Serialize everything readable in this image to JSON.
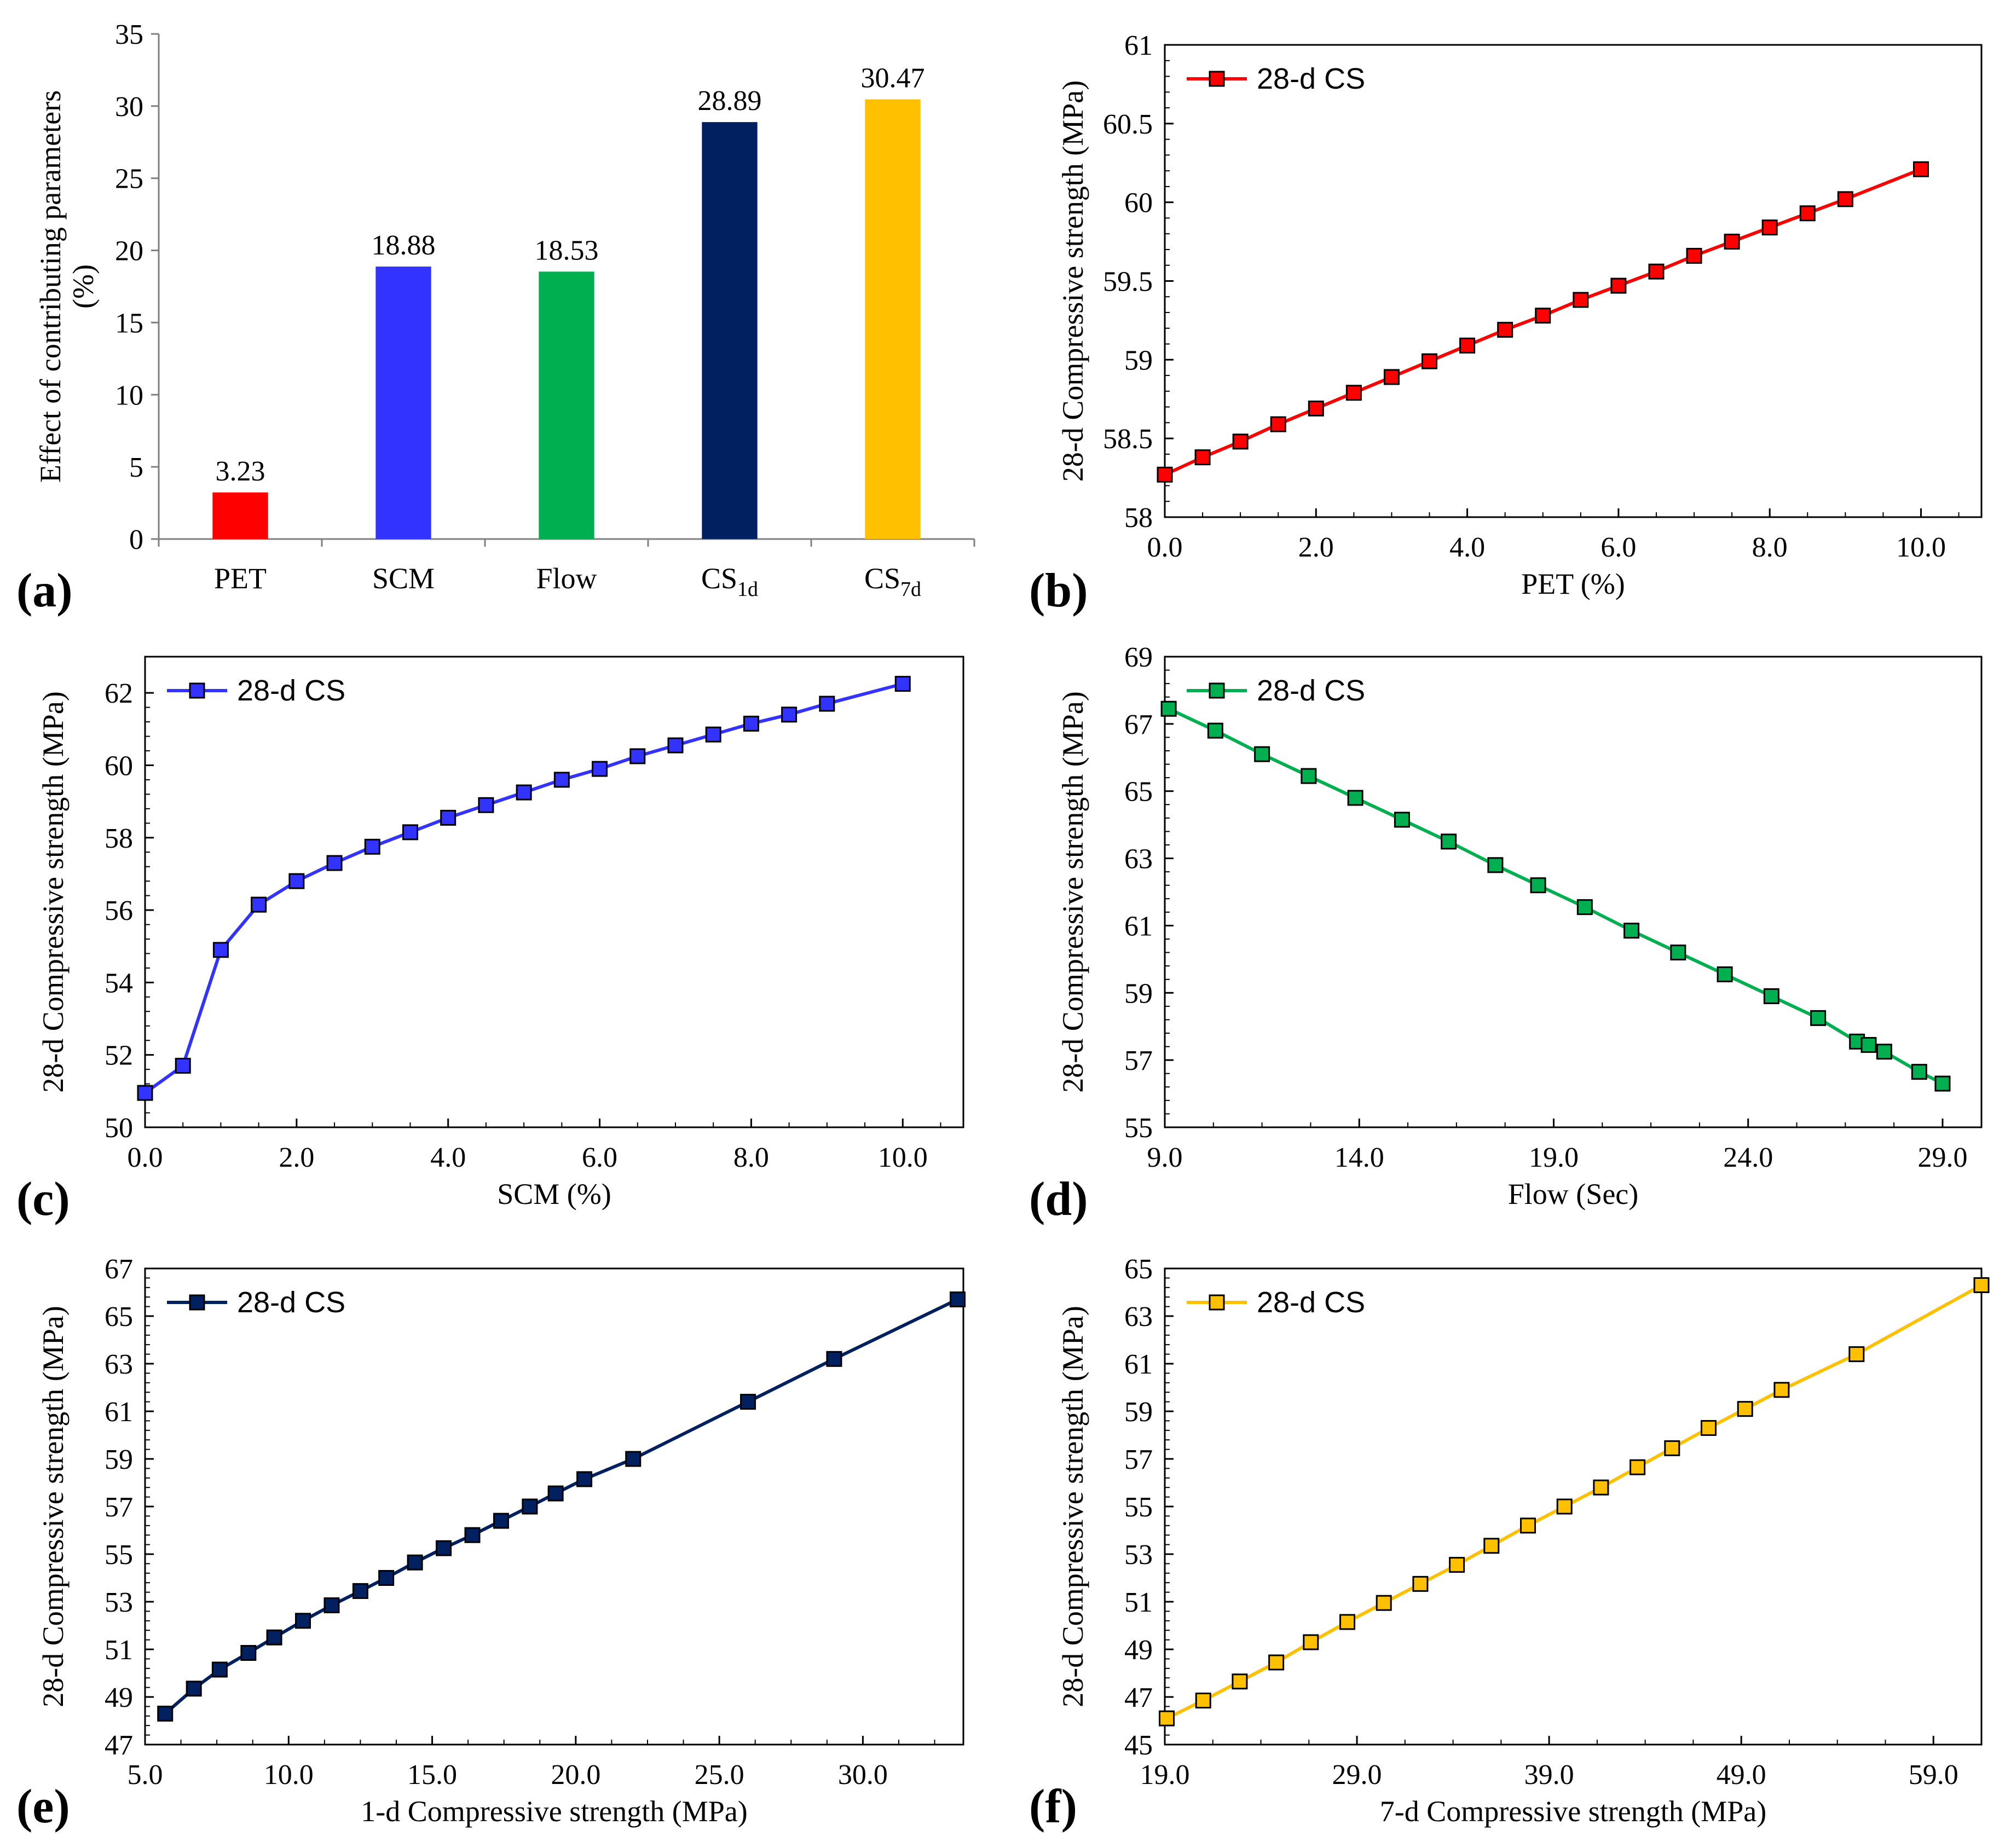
{
  "panels": [
    {
      "tag": "(a)"
    },
    {
      "tag": "(b)"
    },
    {
      "tag": "(c)"
    },
    {
      "tag": "(d)"
    },
    {
      "tag": "(e)"
    },
    {
      "tag": "(f)"
    }
  ],
  "chart_data": [
    {
      "id": "a",
      "type": "bar",
      "ylabel": "Effect of contributing parameters (%)",
      "ylabel_lines": [
        "Effect of contributing parameters",
        "(%)"
      ],
      "ylim": [
        0,
        35
      ],
      "yticks": [
        "0",
        "5",
        "10",
        "15",
        "20",
        "25",
        "30",
        "35"
      ],
      "categories": [
        {
          "name": "PET",
          "base": "PET",
          "sub": ""
        },
        {
          "name": "SCM",
          "base": "SCM",
          "sub": ""
        },
        {
          "name": "Flow",
          "base": "Flow",
          "sub": ""
        },
        {
          "name": "CS1d",
          "base": "CS",
          "sub": "1d"
        },
        {
          "name": "CS7d",
          "base": "CS",
          "sub": "7d"
        }
      ],
      "values": [
        3.23,
        18.88,
        18.53,
        28.89,
        30.47
      ],
      "value_labels": [
        "3.23",
        "18.88",
        "18.53",
        "28.89",
        "30.47"
      ],
      "colors": [
        "#ff0000",
        "#3333ff",
        "#00b050",
        "#002060",
        "#ffc000"
      ]
    },
    {
      "id": "b",
      "type": "line",
      "series_name": "28-d CS",
      "color": "#ff0000",
      "xlabel": "PET (%)",
      "ylabel": "28-d Compressive strength (MPa)",
      "xlim": [
        0,
        10.8
      ],
      "ylim": [
        58,
        61
      ],
      "xticks": [
        "0.0",
        "2.0",
        "4.0",
        "6.0",
        "8.0",
        "10.0"
      ],
      "yticks": [
        "58",
        "58.5",
        "59",
        "59.5",
        "60",
        "60.5",
        "61"
      ],
      "x": [
        0,
        0.5,
        1,
        1.5,
        2,
        2.5,
        3,
        3.5,
        4,
        4.5,
        5,
        5.5,
        6,
        6.5,
        7,
        7.5,
        8,
        8.5,
        9,
        10
      ],
      "y": [
        58.27,
        58.38,
        58.48,
        58.59,
        58.69,
        58.79,
        58.89,
        58.99,
        59.09,
        59.19,
        59.28,
        59.38,
        59.47,
        59.56,
        59.66,
        59.75,
        59.84,
        59.93,
        60.02,
        60.21
      ]
    },
    {
      "id": "c",
      "type": "line",
      "series_name": "28-d CS",
      "color": "#3333ff",
      "xlabel": "SCM (%)",
      "ylabel": "28-d Compressive strength (MPa)",
      "xlim": [
        0,
        10.8
      ],
      "ylim": [
        50,
        63
      ],
      "xticks": [
        "0.0",
        "2.0",
        "4.0",
        "6.0",
        "8.0",
        "10.0"
      ],
      "yticks": [
        "50",
        "52",
        "54",
        "56",
        "58",
        "60",
        "62"
      ],
      "x": [
        0,
        0.5,
        1,
        1.5,
        2,
        2.5,
        3,
        3.5,
        4,
        4.5,
        5,
        5.5,
        6,
        6.5,
        7,
        7.5,
        8,
        8.5,
        9,
        10
      ],
      "y": [
        50.95,
        51.7,
        54.9,
        56.15,
        56.8,
        57.3,
        57.75,
        58.15,
        58.55,
        58.9,
        59.25,
        59.6,
        59.9,
        60.25,
        60.55,
        60.85,
        61.15,
        61.4,
        61.7,
        62.25
      ]
    },
    {
      "id": "d",
      "type": "line",
      "series_name": "28-d CS",
      "color": "#00b050",
      "xlabel": "Flow (Sec)",
      "ylabel": "28-d Compressive strength (MPa)",
      "xlim": [
        9,
        30
      ],
      "ylim": [
        55,
        69
      ],
      "xticks": [
        "9.0",
        "14.0",
        "19.0",
        "24.0",
        "29.0"
      ],
      "yticks": [
        "55",
        "57",
        "59",
        "61",
        "63",
        "65",
        "67",
        "69"
      ],
      "x": [
        9.1,
        10.3,
        11.5,
        12.7,
        13.9,
        15.1,
        16.3,
        17.5,
        18.6,
        19.8,
        21.0,
        22.2,
        23.4,
        24.6,
        25.8,
        26.8,
        27.1,
        27.5,
        28.4,
        29.0
      ],
      "y": [
        67.45,
        66.8,
        66.1,
        65.45,
        64.8,
        64.15,
        63.5,
        62.8,
        62.2,
        61.55,
        60.85,
        60.2,
        59.55,
        58.9,
        58.25,
        57.55,
        57.45,
        57.25,
        56.65,
        56.3
      ]
    },
    {
      "id": "e",
      "type": "line",
      "series_name": "28-d CS",
      "color": "#002060",
      "xlabel": "1-d Compressive strength (MPa)",
      "ylabel": "28-d Compressive strength (MPa)",
      "xlim": [
        5,
        33.5
      ],
      "ylim": [
        47,
        67
      ],
      "xticks": [
        "5.0",
        "10.0",
        "15.0",
        "20.0",
        "25.0",
        "30.0"
      ],
      "yticks": [
        "47",
        "49",
        "51",
        "53",
        "55",
        "57",
        "59",
        "61",
        "63",
        "65",
        "67"
      ],
      "x": [
        5.7,
        6.7,
        7.6,
        8.6,
        9.5,
        10.5,
        11.5,
        12.5,
        13.4,
        14.4,
        15.4,
        16.4,
        17.4,
        18.4,
        19.3,
        20.3,
        22.0,
        26.0,
        29.0,
        33.3
      ],
      "y": [
        48.3,
        49.35,
        50.15,
        50.85,
        51.5,
        52.2,
        52.85,
        53.45,
        54.0,
        54.65,
        55.25,
        55.8,
        56.4,
        57.0,
        57.55,
        58.15,
        59.0,
        61.4,
        63.2,
        65.7
      ]
    },
    {
      "id": "f",
      "type": "line",
      "series_name": "28-d CS",
      "color": "#ffc000",
      "xlabel": "7-d Compressive strength (MPa)",
      "ylabel": "28-d Compressive strength (MPa)",
      "xlim": [
        19,
        61.5
      ],
      "ylim": [
        45,
        65
      ],
      "xticks": [
        "19.0",
        "29.0",
        "39.0",
        "49.0",
        "59.0"
      ],
      "yticks": [
        "45",
        "47",
        "49",
        "51",
        "53",
        "55",
        "57",
        "59",
        "61",
        "63",
        "65"
      ],
      "x": [
        19.1,
        21.0,
        22.9,
        24.8,
        26.6,
        28.5,
        30.4,
        32.3,
        34.2,
        36.0,
        37.9,
        39.8,
        41.7,
        43.6,
        45.4,
        47.3,
        49.2,
        51.1,
        55.0,
        61.5
      ],
      "y": [
        46.1,
        46.85,
        47.65,
        48.45,
        49.3,
        50.15,
        50.95,
        51.75,
        52.55,
        53.35,
        54.2,
        55.0,
        55.8,
        56.65,
        57.45,
        58.3,
        59.1,
        59.9,
        61.4,
        64.3
      ]
    }
  ]
}
